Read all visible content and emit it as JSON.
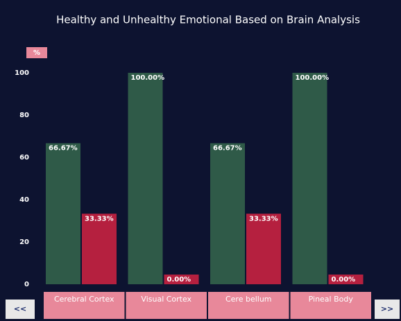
{
  "chart_data": {
    "type": "bar",
    "title": "Healthy and Unhealthy Emotional Based on Brain Analysis",
    "y_label": "%",
    "categories": [
      "Cerebral Cortex",
      "Visual Cortex",
      "Cere bellum",
      "Pineal Body"
    ],
    "series": [
      {
        "color": "#2f5a48",
        "values": [
          66.67,
          100,
          66.67,
          100
        ],
        "value_labels": [
          "66.67%",
          "100.00%",
          "66.67%",
          "100.00%"
        ]
      },
      {
        "color": "#b5203f",
        "values": [
          33.33,
          0,
          33.33,
          0
        ],
        "value_labels": [
          "33.33%",
          "0.00%",
          "33.33%",
          "0.00%"
        ]
      }
    ],
    "ylim": [
      0,
      100
    ],
    "yticks": [
      0,
      20,
      40,
      60,
      80,
      100
    ],
    "grid": false,
    "nav": {
      "prev": "<<",
      "next": ">>"
    }
  }
}
